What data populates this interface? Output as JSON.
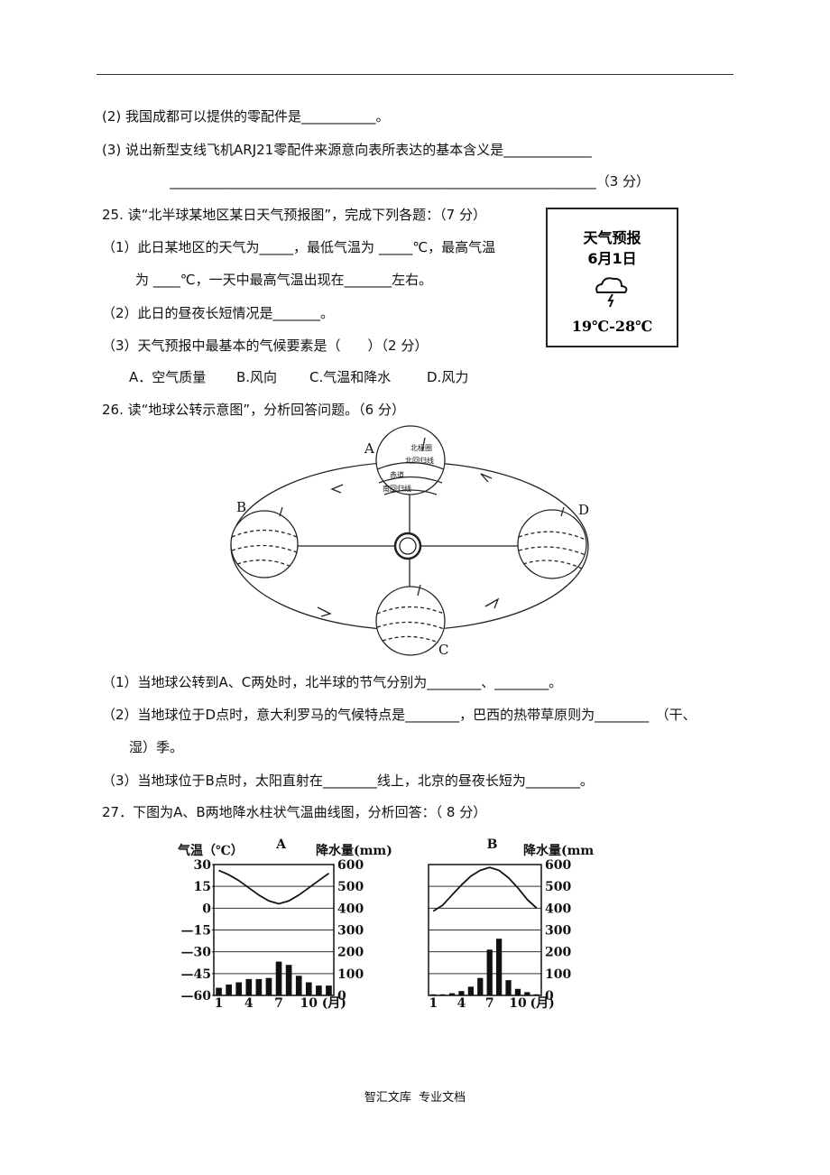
{
  "lines": [
    "(2) 我国成都可以提供的零配件是___________。",
    "(3) 说出新型支线飞机ARJ21零配件来源意向表所表达的基本含义是_____________",
    "_______________________________________________________________（3 分）",
    "25. 读“北半球某地区某日天气预报图”，完成下列各题：（7 分）",
    "（1）此日某地区的天气为_____，最低气温为 _____℃，最高气温",
    "为 ____℃，一天中最高气温出现在_______左右。",
    "（2）此日的昼夜长短情况是_______。",
    "（3）天气预报中最基本的气候要素是（　　）（2 分）",
    "26. 读“地球公转示意图”，分析回答问题。（6 分）",
    "（1）当地球公转到A、C两处时，北半球的节气分别为________、________。",
    "（2）当地球位于D点时，意大利罗马的气候特点是________，巴西的热带草原则为________　（干、",
    "湿）季。",
    "（3）当地球位于B点时，太阳直射在________线上，北京的昼夜长短为________。",
    "27．下图为A、B两地降水柱状气温曲线图，分析回答：（ 8 分）"
  ],
  "options": [
    "A．空气质量",
    "B.风向",
    "C.气温和降水",
    "D.风力"
  ],
  "weather_box": {
    "title": "天气预报",
    "date": "6月1日",
    "temp": "19℃-28℃"
  },
  "orbit": {
    "labels": [
      "A",
      "B",
      "C",
      "D"
    ],
    "globe_text": [
      "北极圈",
      "北回归线",
      "赤道",
      "南回归线"
    ]
  },
  "charts": [
    {
      "type": "climate",
      "title": "A",
      "ylabel": "气温（℃）",
      "y2label": "降水量(mm)",
      "x_unit": "(月)",
      "xticks": [
        1,
        4,
        7,
        10
      ],
      "ylim": [
        -60,
        30
      ],
      "yticks": [
        30,
        15,
        0,
        {
          "value": -15,
          "label": "—15"
        },
        {
          "value": -30,
          "label": "—30"
        },
        {
          "value": -45,
          "label": "—45"
        },
        {
          "value": -60,
          "label": "—60"
        }
      ],
      "y2lim": [
        0,
        600
      ],
      "y2ticks": [
        0,
        100,
        200,
        300,
        400,
        500,
        600
      ],
      "temperature": [
        26,
        23,
        19,
        14,
        9,
        5,
        3,
        5,
        9,
        14,
        19,
        24
      ],
      "precipitation": [
        35,
        50,
        60,
        75,
        75,
        80,
        155,
        140,
        90,
        60,
        45,
        45
      ]
    },
    {
      "type": "climate",
      "title": "B",
      "y2label": "降水量(mm",
      "x_unit": "(月)",
      "xticks": [
        1,
        4,
        7,
        10
      ],
      "ylim": [
        -60,
        30
      ],
      "y2lim": [
        0,
        600
      ],
      "y2ticks": [
        0,
        100,
        200,
        300,
        400,
        500,
        600
      ],
      "temperature": [
        -2,
        2,
        9,
        16,
        22,
        26,
        28,
        26,
        21,
        14,
        6,
        0
      ],
      "precipitation": [
        5,
        5,
        10,
        20,
        40,
        80,
        210,
        260,
        70,
        30,
        15,
        5
      ]
    }
  ],
  "footer": "智汇文库  专业文档"
}
